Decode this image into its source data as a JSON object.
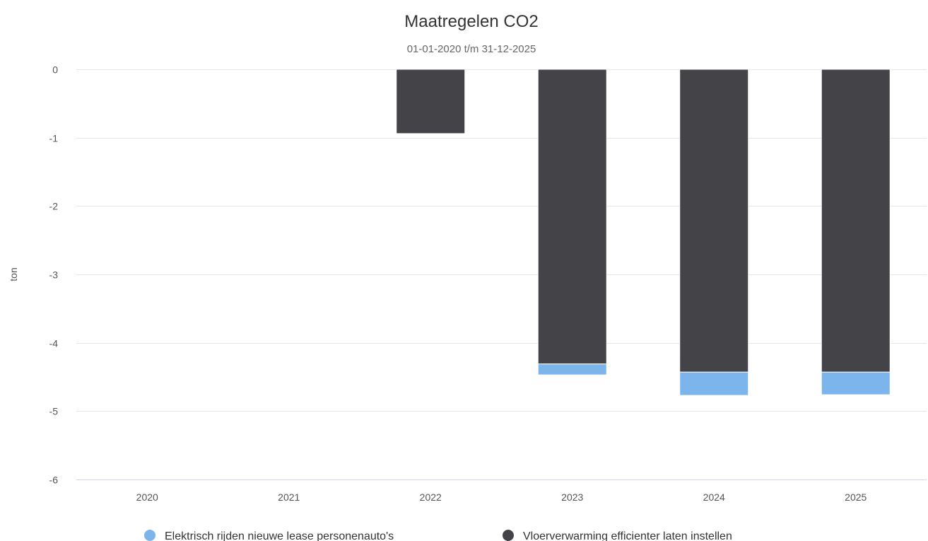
{
  "chart_data": {
    "type": "bar",
    "stacked": true,
    "title": "Maatregelen CO2",
    "subtitle": "01-01-2020 t/m 31-12-2025",
    "xlabel": "",
    "ylabel": "ton",
    "categories": [
      "2020",
      "2021",
      "2022",
      "2023",
      "2024",
      "2025"
    ],
    "ylim": [
      -6,
      0
    ],
    "yticks": [
      0,
      -1,
      -2,
      -3,
      -4,
      -5,
      -6
    ],
    "grid": true,
    "legend_position": "bottom",
    "series": [
      {
        "name": "Vloerverwarming efficienter laten instellen",
        "color": "#434348",
        "values": [
          0,
          0,
          -0.94,
          -4.31,
          -4.43,
          -4.43
        ]
      },
      {
        "name": "Elektrisch rijden nieuwe lease personenauto's",
        "color": "#7cb5ec",
        "values": [
          0,
          0,
          0,
          -0.16,
          -0.34,
          -0.33
        ]
      }
    ]
  }
}
